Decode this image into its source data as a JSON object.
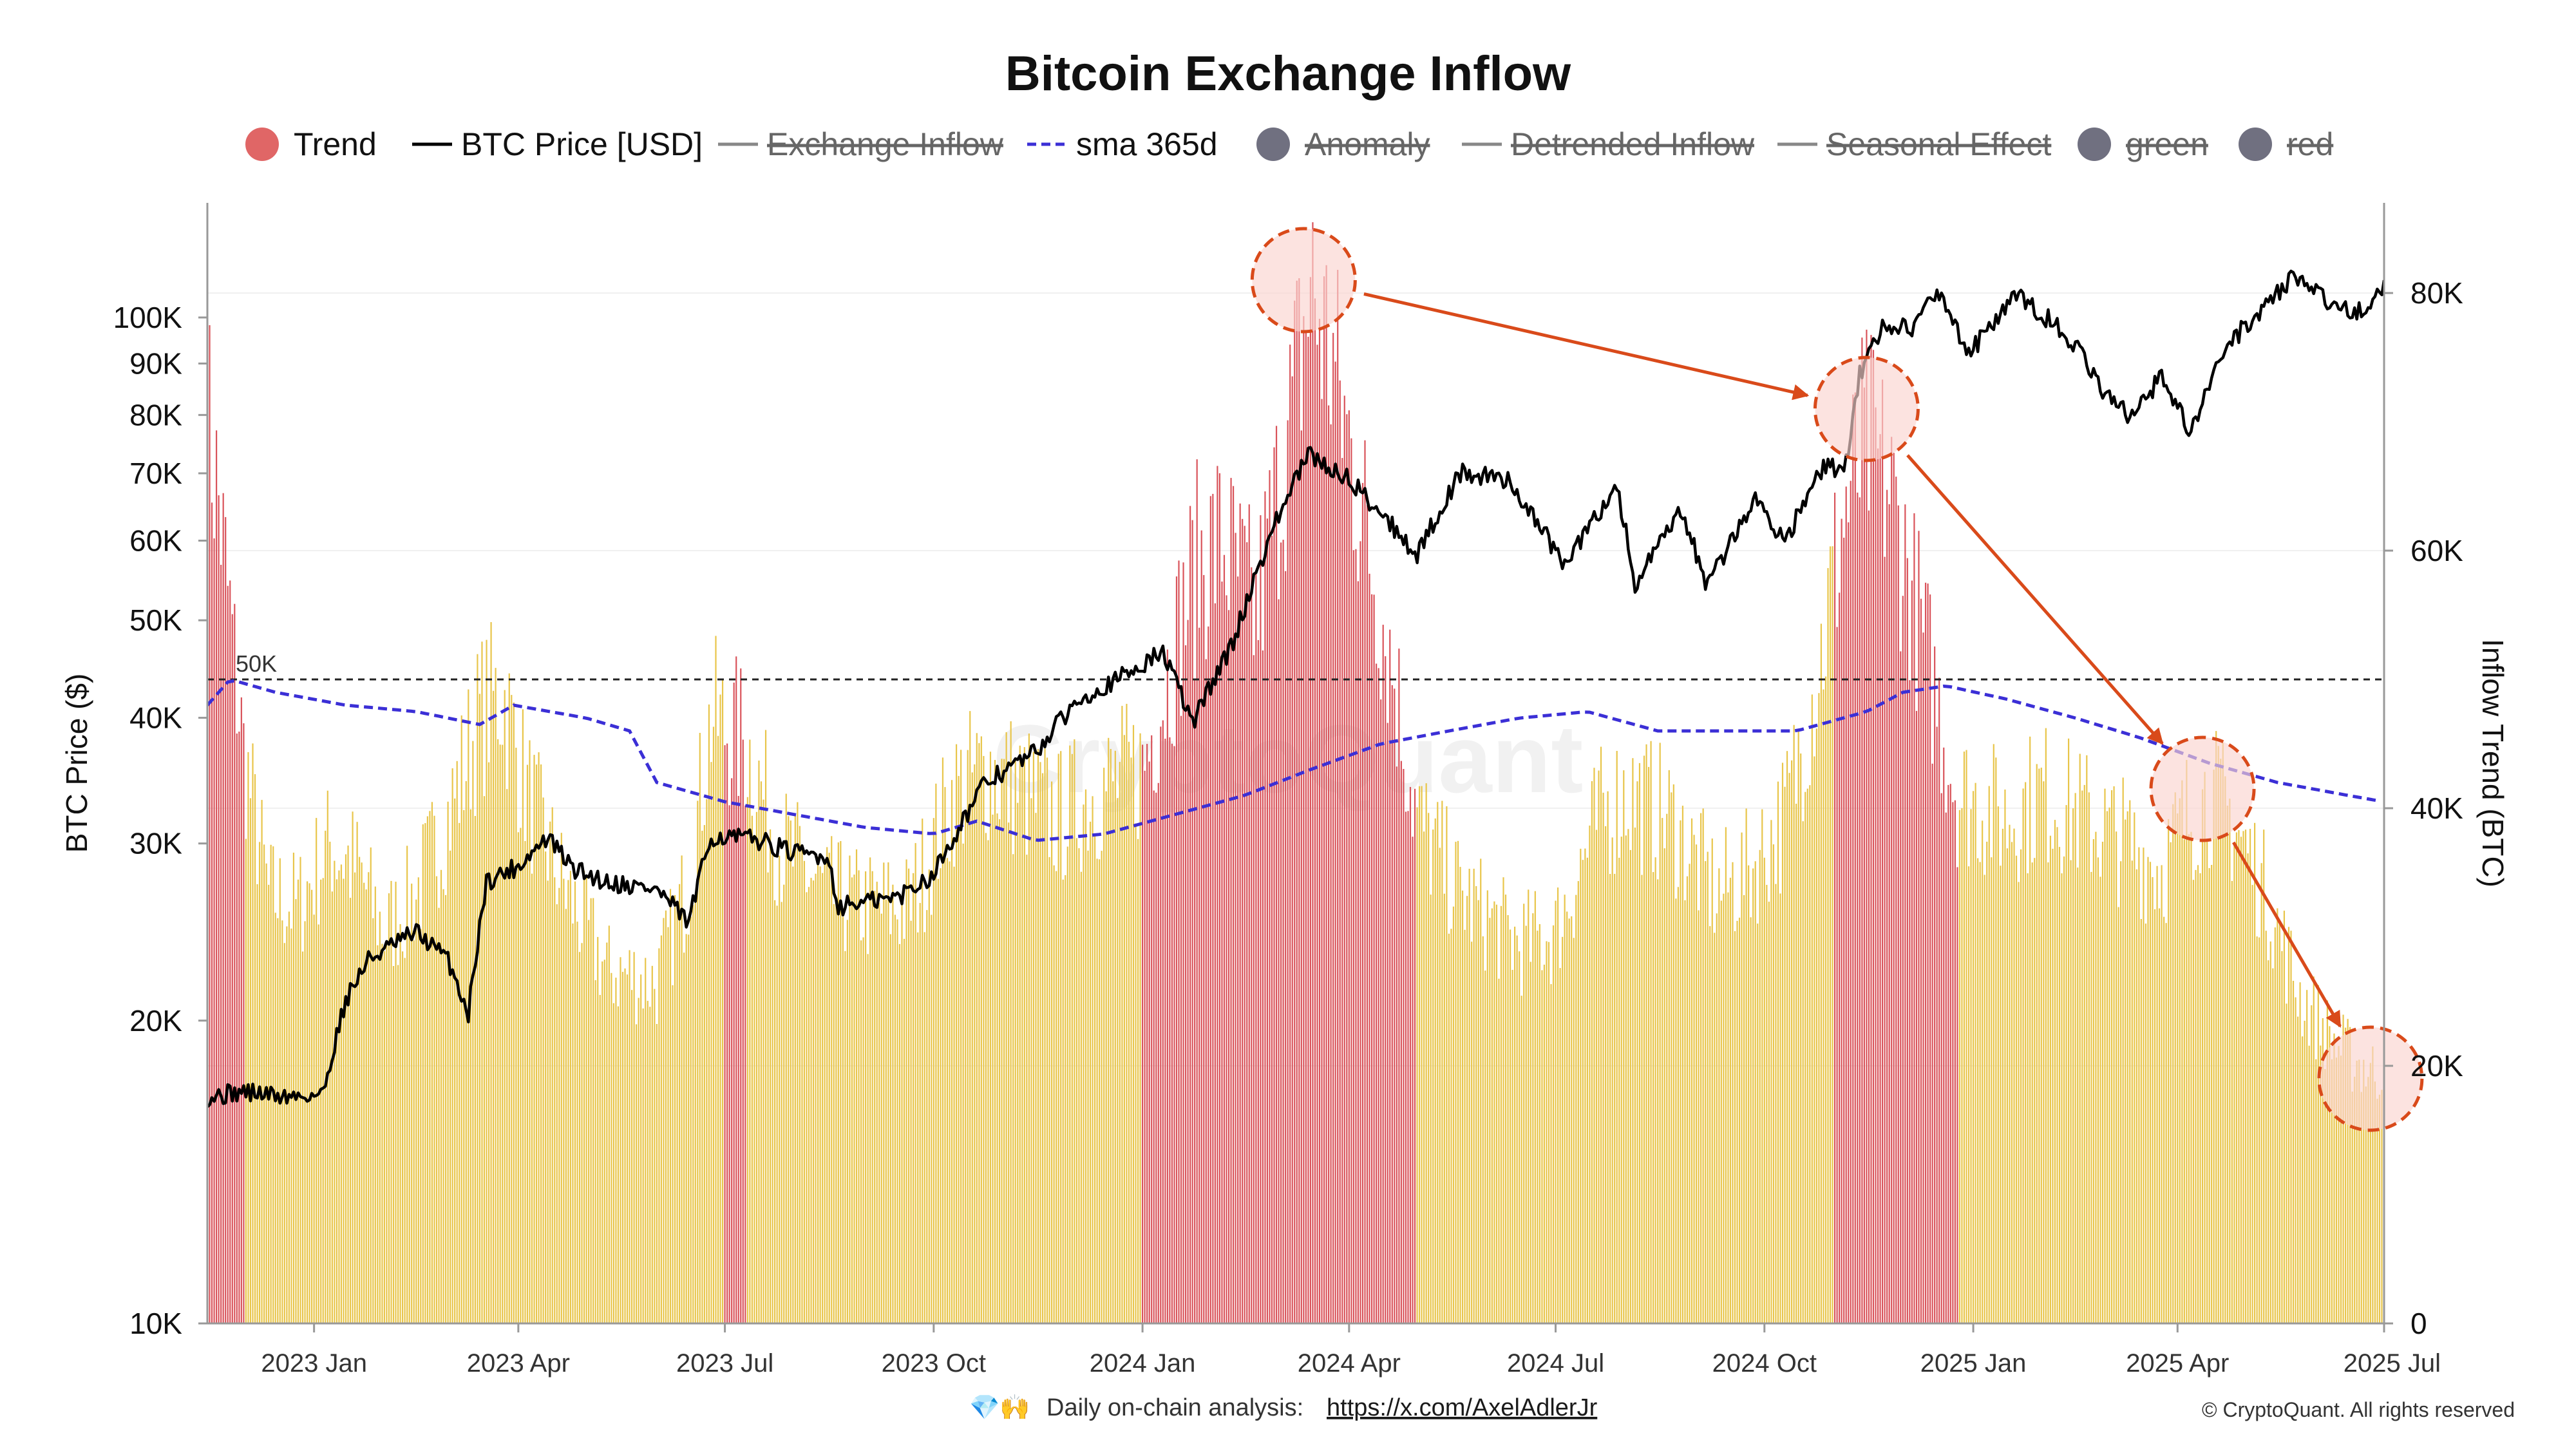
{
  "chart_data": {
    "type": "bar+line",
    "title": "Bitcoin Exchange Inflow",
    "legend": [
      {
        "label": "Trend",
        "symbol": "dot",
        "color": "#e06666",
        "hidden": false
      },
      {
        "label": "BTC Price [USD]",
        "symbol": "line",
        "color": "#000000",
        "hidden": false
      },
      {
        "label": "Exchange Inflow",
        "symbol": "line",
        "color": "#888888",
        "hidden": true
      },
      {
        "label": "sma 365d",
        "symbol": "dash",
        "color": "#3b2fd6",
        "hidden": false
      },
      {
        "label": "Anomaly",
        "symbol": "dot",
        "color": "#707080",
        "hidden": true
      },
      {
        "label": "Detrended Inflow",
        "symbol": "line",
        "color": "#888888",
        "hidden": true
      },
      {
        "label": "Seasonal Effect",
        "symbol": "line",
        "color": "#888888",
        "hidden": true
      },
      {
        "label": "green",
        "symbol": "dot",
        "color": "#707080",
        "hidden": true
      },
      {
        "label": "red",
        "symbol": "dot",
        "color": "#707080",
        "hidden": true
      }
    ],
    "x_range": [
      "2022-11-15",
      "2025-07-01"
    ],
    "x_ticks": [
      {
        "label": "2023 Jan",
        "date": "2023-01-01"
      },
      {
        "label": "2023 Apr",
        "date": "2023-04-01"
      },
      {
        "label": "2023 Jul",
        "date": "2023-07-01"
      },
      {
        "label": "2023 Oct",
        "date": "2023-10-01"
      },
      {
        "label": "2024 Jan",
        "date": "2024-01-01"
      },
      {
        "label": "2024 Apr",
        "date": "2024-04-01"
      },
      {
        "label": "2024 Jul",
        "date": "2024-07-01"
      },
      {
        "label": "2024 Oct",
        "date": "2024-10-01"
      },
      {
        "label": "2025 Jan",
        "date": "2025-01-01"
      },
      {
        "label": "2025 Apr",
        "date": "2025-04-01"
      },
      {
        "label": "2025 Jul",
        "date": "2025-07-01"
      }
    ],
    "y_left": {
      "label": "BTC Price ($)",
      "scale": "log",
      "range": [
        10000,
        130000
      ],
      "ticks": [
        {
          "label": "10K",
          "value": 10000
        },
        {
          "label": "20K",
          "value": 20000
        },
        {
          "label": "30K",
          "value": 30000
        },
        {
          "label": "40K",
          "value": 40000
        },
        {
          "label": "50K",
          "value": 50000
        },
        {
          "label": "60K",
          "value": 60000
        },
        {
          "label": "70K",
          "value": 70000
        },
        {
          "label": "80K",
          "value": 80000
        },
        {
          "label": "90K",
          "value": 90000
        },
        {
          "label": "100K",
          "value": 100000
        }
      ]
    },
    "y_right": {
      "label": "Inflow Trend (BTC)",
      "scale": "linear",
      "range": [
        0,
        87000
      ],
      "ticks": [
        {
          "label": "0",
          "value": 0
        },
        {
          "label": "20K",
          "value": 20000
        },
        {
          "label": "40K",
          "value": 40000
        },
        {
          "label": "60K",
          "value": 60000
        },
        {
          "label": "80K",
          "value": 80000
        }
      ]
    },
    "reference_line": {
      "label": "50K",
      "value": 50000,
      "axis": "right",
      "style": "dashed"
    },
    "trend_anchors": [
      [
        "2022-11-15",
        72000
      ],
      [
        "2022-11-20",
        65000
      ],
      [
        "2022-12-01",
        45000
      ],
      [
        "2022-12-12",
        34000
      ],
      [
        "2022-12-25",
        33000
      ],
      [
        "2023-01-08",
        38000
      ],
      [
        "2023-01-20",
        36000
      ],
      [
        "2023-02-01",
        31000
      ],
      [
        "2023-02-15",
        34000
      ],
      [
        "2023-03-01",
        40000
      ],
      [
        "2023-03-15",
        48000
      ],
      [
        "2023-03-25",
        50000
      ],
      [
        "2023-04-05",
        42000
      ],
      [
        "2023-04-20",
        35000
      ],
      [
        "2023-05-10",
        28000
      ],
      [
        "2023-06-01",
        27000
      ],
      [
        "2023-06-15",
        35000
      ],
      [
        "2023-06-25",
        48000
      ],
      [
        "2023-07-10",
        46000
      ],
      [
        "2023-07-25",
        38000
      ],
      [
        "2023-08-15",
        34000
      ],
      [
        "2023-09-01",
        33000
      ],
      [
        "2023-09-20",
        33000
      ],
      [
        "2023-10-10",
        42000
      ],
      [
        "2023-10-25",
        44000
      ],
      [
        "2023-11-10",
        42000
      ],
      [
        "2023-11-25",
        40000
      ],
      [
        "2023-12-10",
        42000
      ],
      [
        "2024-01-01",
        44000
      ],
      [
        "2024-01-10",
        50000
      ],
      [
        "2024-01-25",
        60000
      ],
      [
        "2024-02-05",
        62000
      ],
      [
        "2024-02-20",
        56000
      ],
      [
        "2024-03-05",
        70000
      ],
      [
        "2024-03-15",
        82000
      ],
      [
        "2024-03-25",
        76000
      ],
      [
        "2024-04-05",
        66000
      ],
      [
        "2024-04-20",
        52000
      ],
      [
        "2024-05-01",
        40000
      ],
      [
        "2024-05-20",
        34000
      ],
      [
        "2024-06-15",
        30000
      ],
      [
        "2024-07-01",
        31000
      ],
      [
        "2024-07-20",
        40000
      ],
      [
        "2024-08-01",
        42000
      ],
      [
        "2024-08-20",
        40000
      ],
      [
        "2024-09-10",
        34000
      ],
      [
        "2024-09-25",
        36000
      ],
      [
        "2024-10-10",
        40000
      ],
      [
        "2024-10-25",
        52000
      ],
      [
        "2024-11-05",
        64000
      ],
      [
        "2024-11-15",
        70000
      ],
      [
        "2024-11-25",
        66000
      ],
      [
        "2024-12-05",
        58000
      ],
      [
        "2024-12-15",
        50000
      ],
      [
        "2024-12-25",
        42000
      ],
      [
        "2025-01-15",
        40000
      ],
      [
        "2025-02-01",
        42000
      ],
      [
        "2025-02-20",
        40000
      ],
      [
        "2025-03-10",
        38000
      ],
      [
        "2025-03-25",
        36000
      ],
      [
        "2025-04-05",
        40000
      ],
      [
        "2025-04-15",
        42000
      ],
      [
        "2025-04-25",
        40000
      ],
      [
        "2025-05-10",
        34000
      ],
      [
        "2025-05-25",
        26000
      ],
      [
        "2025-06-10",
        22000
      ],
      [
        "2025-06-25",
        20000
      ],
      [
        "2025-07-01",
        20000
      ]
    ],
    "red_periods": [
      [
        "2022-11-15",
        "2022-12-01"
      ],
      [
        "2023-07-01",
        "2023-07-10"
      ],
      [
        "2024-01-01",
        "2024-04-30"
      ],
      [
        "2024-11-01",
        "2024-12-25"
      ]
    ],
    "btc_price_anchors": [
      [
        "2022-11-15",
        16800
      ],
      [
        "2022-12-01",
        17000
      ],
      [
        "2022-12-20",
        16800
      ],
      [
        "2023-01-05",
        16900
      ],
      [
        "2023-01-15",
        21000
      ],
      [
        "2023-01-25",
        23000
      ],
      [
        "2023-02-15",
        24500
      ],
      [
        "2023-03-01",
        23000
      ],
      [
        "2023-03-10",
        20300
      ],
      [
        "2023-03-18",
        27500
      ],
      [
        "2023-04-01",
        28500
      ],
      [
        "2023-04-14",
        30400
      ],
      [
        "2023-04-25",
        28300
      ],
      [
        "2023-05-10",
        27500
      ],
      [
        "2023-06-01",
        27000
      ],
      [
        "2023-06-15",
        25000
      ],
      [
        "2023-06-25",
        30500
      ],
      [
        "2023-07-15",
        30300
      ],
      [
        "2023-08-01",
        29300
      ],
      [
        "2023-08-15",
        29200
      ],
      [
        "2023-08-20",
        26000
      ],
      [
        "2023-09-15",
        26500
      ],
      [
        "2023-10-01",
        28000
      ],
      [
        "2023-10-24",
        34500
      ],
      [
        "2023-11-15",
        37000
      ],
      [
        "2023-12-05",
        42000
      ],
      [
        "2023-12-20",
        43500
      ],
      [
        "2024-01-10",
        46500
      ],
      [
        "2024-01-23",
        39500
      ],
      [
        "2024-02-10",
        47500
      ],
      [
        "2024-02-28",
        62000
      ],
      [
        "2024-03-14",
        73000
      ],
      [
        "2024-04-01",
        69000
      ],
      [
        "2024-04-15",
        64000
      ],
      [
        "2024-05-01",
        58000
      ],
      [
        "2024-05-20",
        70000
      ],
      [
        "2024-06-10",
        69000
      ],
      [
        "2024-07-05",
        56500
      ],
      [
        "2024-07-28",
        68000
      ],
      [
        "2024-08-05",
        54000
      ],
      [
        "2024-08-25",
        64000
      ],
      [
        "2024-09-06",
        54000
      ],
      [
        "2024-09-27",
        66000
      ],
      [
        "2024-10-10",
        60000
      ],
      [
        "2024-10-29",
        72000
      ],
      [
        "2024-11-05",
        69000
      ],
      [
        "2024-11-12",
        88000
      ],
      [
        "2024-11-22",
        98000
      ],
      [
        "2024-12-05",
        98000
      ],
      [
        "2024-12-17",
        106000
      ],
      [
        "2024-12-30",
        92000
      ],
      [
        "2025-01-20",
        105000
      ],
      [
        "2025-02-10",
        97000
      ],
      [
        "2025-02-28",
        84000
      ],
      [
        "2025-03-10",
        80000
      ],
      [
        "2025-03-25",
        87000
      ],
      [
        "2025-04-07",
        77000
      ],
      [
        "2025-04-22",
        93000
      ],
      [
        "2025-05-22",
        110000
      ],
      [
        "2025-06-05",
        104000
      ],
      [
        "2025-06-22",
        101000
      ],
      [
        "2025-07-01",
        107500
      ]
    ],
    "sma365_anchors": [
      [
        "2022-11-15",
        48000
      ],
      [
        "2022-11-25",
        50000
      ],
      [
        "2022-12-15",
        49000
      ],
      [
        "2023-01-15",
        48000
      ],
      [
        "2023-02-15",
        47500
      ],
      [
        "2023-03-15",
        46500
      ],
      [
        "2023-03-30",
        48000
      ],
      [
        "2023-05-01",
        47000
      ],
      [
        "2023-05-20",
        46000
      ],
      [
        "2023-06-01",
        42000
      ],
      [
        "2023-07-01",
        40500
      ],
      [
        "2023-08-01",
        39500
      ],
      [
        "2023-09-01",
        38500
      ],
      [
        "2023-10-01",
        38000
      ],
      [
        "2023-10-20",
        39000
      ],
      [
        "2023-11-15",
        37500
      ],
      [
        "2023-12-15",
        38000
      ],
      [
        "2024-01-15",
        39500
      ],
      [
        "2024-02-15",
        41000
      ],
      [
        "2024-03-15",
        43000
      ],
      [
        "2024-04-15",
        45000
      ],
      [
        "2024-05-15",
        46000
      ],
      [
        "2024-06-15",
        47000
      ],
      [
        "2024-07-15",
        47500
      ],
      [
        "2024-08-15",
        46000
      ],
      [
        "2024-09-15",
        46000
      ],
      [
        "2024-10-15",
        46000
      ],
      [
        "2024-11-15",
        47500
      ],
      [
        "2024-12-01",
        49000
      ],
      [
        "2024-12-20",
        49500
      ],
      [
        "2025-01-15",
        48500
      ],
      [
        "2025-02-15",
        47000
      ],
      [
        "2025-03-15",
        45500
      ],
      [
        "2025-04-15",
        43500
      ],
      [
        "2025-05-15",
        42000
      ],
      [
        "2025-06-15",
        41000
      ],
      [
        "2025-07-01",
        40500
      ]
    ],
    "annotations": [
      {
        "type": "circle",
        "date": "2024-03-12",
        "value": 81000,
        "axis": "right",
        "color": "#d94a1a"
      },
      {
        "type": "circle",
        "date": "2024-11-15",
        "value": 71000,
        "axis": "right",
        "color": "#d94a1a"
      },
      {
        "type": "circle",
        "date": "2025-04-12",
        "value": 41500,
        "axis": "right",
        "color": "#d94a1a"
      },
      {
        "type": "circle",
        "date": "2025-06-25",
        "value": 19000,
        "axis": "right",
        "color": "#d94a1a"
      },
      {
        "type": "arrow",
        "from": 0,
        "to": 1,
        "color": "#d94a1a"
      },
      {
        "type": "arrow",
        "from": 1,
        "to": 2,
        "color": "#d94a1a"
      },
      {
        "type": "arrow",
        "from": 2,
        "to": 3,
        "color": "#d94a1a"
      }
    ],
    "colors": {
      "bar_normal": "#e8c54a",
      "bar_trend": "#d9535a",
      "price_line": "#000000",
      "sma_line": "#3b2fd6",
      "annotation": "#d94a1a",
      "annotation_fill": "#fbd4d0"
    }
  },
  "watermark": "CryptoQuant",
  "footer": {
    "emoji": "💎🙌",
    "text": "Daily on-chain analysis:",
    "link": "https://x.com/AxelAdlerJr",
    "copyright": "© CryptoQuant. All rights reserved"
  }
}
